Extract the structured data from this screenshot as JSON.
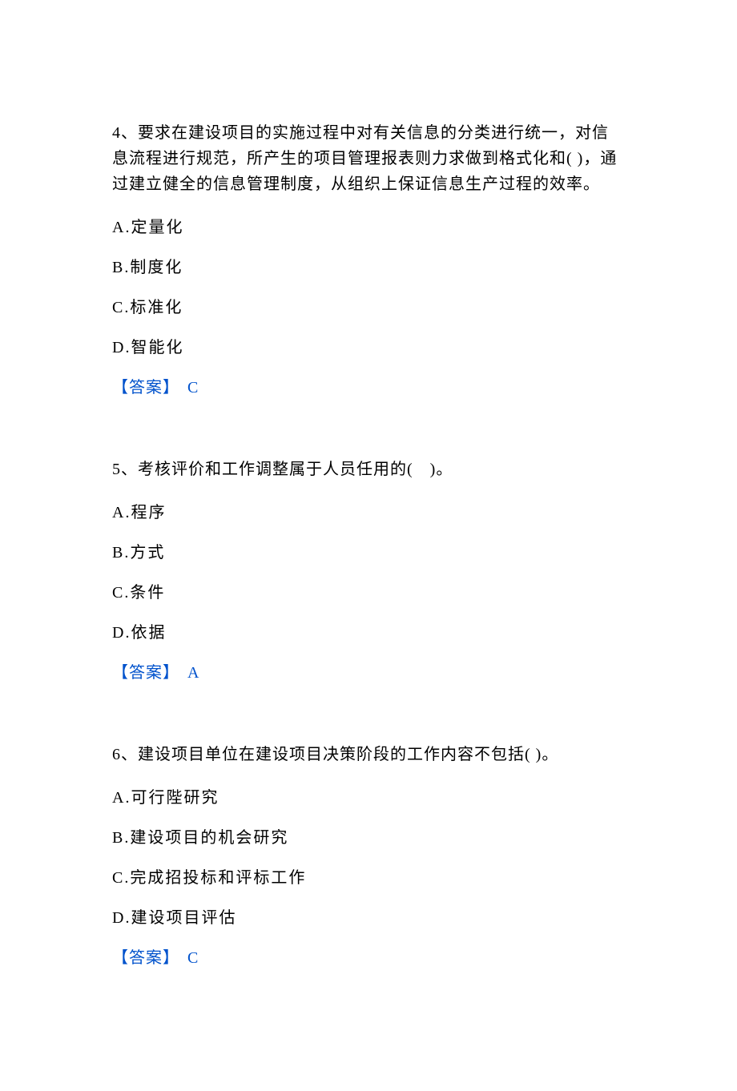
{
  "text_color": "#000000",
  "answer_color": "#0052cc",
  "background_color": "#ffffff",
  "font_family": "SimSun",
  "base_fontsize": 20,
  "questions": [
    {
      "number": "4、",
      "text": "要求在建设项目的实施过程中对有关信息的分类进行统一，对信息流程进行规范，所产生的项目管理报表则力求做到格式化和( )，通过建立健全的信息管理制度，从组织上保证信息生产过程的效率。",
      "options": {
        "A": "A.定量化",
        "B": "B.制度化",
        "C": "C.标准化",
        "D": "D.智能化"
      },
      "answer_label": "【答案】",
      "answer_value": " C"
    },
    {
      "number": "5、",
      "text": "考核评价和工作调整属于人员任用的(　)。",
      "options": {
        "A": "A.程序",
        "B": "B.方式",
        "C": "C.条件",
        "D": "D.依据"
      },
      "answer_label": "【答案】",
      "answer_value": " A"
    },
    {
      "number": "6、",
      "text": "建设项目单位在建设项目决策阶段的工作内容不包括( )。",
      "options": {
        "A": "A.可行陛研究",
        "B": "B.建设项目的机会研究",
        "C": "C.完成招投标和评标工作",
        "D": "D.建设项目评估"
      },
      "answer_label": "【答案】",
      "answer_value": " C"
    }
  ]
}
